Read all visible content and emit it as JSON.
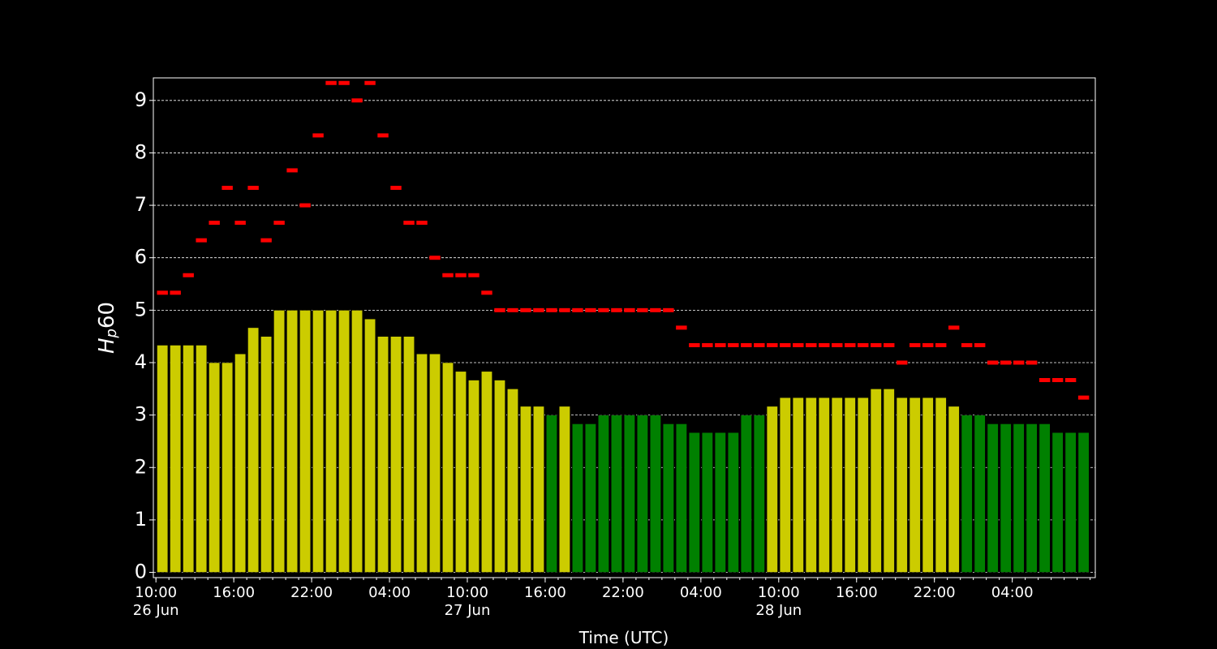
{
  "chart_data": {
    "type": "bar",
    "ylabel": {
      "base": "H",
      "sub": "p",
      "rest": "60"
    },
    "xlabel": "Time (UTC)",
    "xlim": [
      -0.2,
      72.4
    ],
    "ylim": [
      -0.1,
      9.43
    ],
    "yticks": [
      0,
      1,
      2,
      3,
      4,
      5,
      6,
      7,
      8,
      9
    ],
    "xticks": [
      {
        "value": 0,
        "label": "10:00\n26 Jun"
      },
      {
        "value": 6,
        "label": "16:00"
      },
      {
        "value": 12,
        "label": "22:00"
      },
      {
        "value": 18,
        "label": "04:00"
      },
      {
        "value": 24,
        "label": "10:00\n27 Jun"
      },
      {
        "value": 30,
        "label": "16:00"
      },
      {
        "value": 36,
        "label": "22:00"
      },
      {
        "value": 42,
        "label": "04:00"
      },
      {
        "value": 48,
        "label": "10:00\n28 Jun"
      },
      {
        "value": 54,
        "label": "16:00"
      },
      {
        "value": 60,
        "label": "22:00"
      },
      {
        "value": 66,
        "label": "04:00"
      }
    ],
    "grid": true,
    "x": [
      0.5,
      1.5,
      2.5,
      3.5,
      4.5,
      5.5,
      6.5,
      7.5,
      8.5,
      9.5,
      10.5,
      11.5,
      12.5,
      13.5,
      14.5,
      15.5,
      16.5,
      17.5,
      18.5,
      19.5,
      20.5,
      21.5,
      22.5,
      23.5,
      24.5,
      25.5,
      26.5,
      27.5,
      28.5,
      29.5,
      30.5,
      31.5,
      32.5,
      33.5,
      34.5,
      35.5,
      36.5,
      37.5,
      38.5,
      39.5,
      40.5,
      41.5,
      42.5,
      43.5,
      44.5,
      45.5,
      46.5,
      47.5,
      48.5,
      49.5,
      50.5,
      51.5,
      52.5,
      53.5,
      54.5,
      55.5,
      56.5,
      57.5,
      58.5,
      59.5,
      60.5,
      61.5,
      62.5,
      63.5,
      64.5,
      65.5,
      66.5,
      67.5,
      68.5,
      69.5,
      70.5,
      71.5
    ],
    "values": [
      4.333,
      4.333,
      4.333,
      4.333,
      4.0,
      4.0,
      4.167,
      4.667,
      4.5,
      5.0,
      5.0,
      5.0,
      5.0,
      5.0,
      5.0,
      5.0,
      4.833,
      4.5,
      4.5,
      4.5,
      4.167,
      4.167,
      4.0,
      3.833,
      3.667,
      3.833,
      3.667,
      3.5,
      3.167,
      3.167,
      3.0,
      3.167,
      2.833,
      2.833,
      3.0,
      3.0,
      3.0,
      3.0,
      3.0,
      2.833,
      2.833,
      2.667,
      2.667,
      2.667,
      2.667,
      3.0,
      3.0,
      3.167,
      3.333,
      3.333,
      3.333,
      3.333,
      3.333,
      3.333,
      3.333,
      3.5,
      3.5,
      3.333,
      3.333,
      3.333,
      3.333,
      3.167,
      3.0,
      3.0,
      2.833,
      2.833,
      2.833,
      2.833,
      2.833,
      2.667,
      2.667,
      2.667
    ],
    "colors": [
      "#cccc00",
      "#cccc00",
      "#cccc00",
      "#cccc00",
      "#cccc00",
      "#cccc00",
      "#cccc00",
      "#cccc00",
      "#cccc00",
      "#cccc00",
      "#cccc00",
      "#cccc00",
      "#cccc00",
      "#cccc00",
      "#cccc00",
      "#cccc00",
      "#cccc00",
      "#cccc00",
      "#cccc00",
      "#cccc00",
      "#cccc00",
      "#cccc00",
      "#cccc00",
      "#cccc00",
      "#cccc00",
      "#cccc00",
      "#cccc00",
      "#cccc00",
      "#cccc00",
      "#cccc00",
      "#008000",
      "#cccc00",
      "#008000",
      "#008000",
      "#008000",
      "#008000",
      "#008000",
      "#008000",
      "#008000",
      "#008000",
      "#008000",
      "#008000",
      "#008000",
      "#008000",
      "#008000",
      "#008000",
      "#008000",
      "#cccc00",
      "#cccc00",
      "#cccc00",
      "#cccc00",
      "#cccc00",
      "#cccc00",
      "#cccc00",
      "#cccc00",
      "#cccc00",
      "#cccc00",
      "#cccc00",
      "#cccc00",
      "#cccc00",
      "#cccc00",
      "#cccc00",
      "#008000",
      "#008000",
      "#008000",
      "#008000",
      "#008000",
      "#008000",
      "#008000",
      "#008000",
      "#008000",
      "#008000"
    ],
    "markers": {
      "color": "#ff0000",
      "values": [
        5.333,
        5.333,
        5.667,
        6.333,
        6.667,
        7.333,
        6.667,
        7.333,
        6.333,
        6.667,
        7.667,
        7.0,
        8.333,
        9.333,
        9.333,
        9.0,
        9.333,
        8.333,
        7.333,
        6.667,
        6.667,
        6.0,
        5.667,
        5.667,
        5.667,
        5.333,
        5.0,
        5.0,
        5.0,
        5.0,
        5.0,
        5.0,
        5.0,
        5.0,
        5.0,
        5.0,
        5.0,
        5.0,
        5.0,
        5.0,
        4.667,
        4.333,
        4.333,
        4.333,
        4.333,
        4.333,
        4.333,
        4.333,
        4.333,
        4.333,
        4.333,
        4.333,
        4.333,
        4.333,
        4.333,
        4.333,
        4.333,
        4.0,
        4.333,
        4.333,
        4.333,
        4.667,
        4.333,
        4.333,
        4.0,
        4.0,
        4.0,
        4.0,
        3.667,
        3.667,
        3.667,
        3.333
      ]
    }
  }
}
